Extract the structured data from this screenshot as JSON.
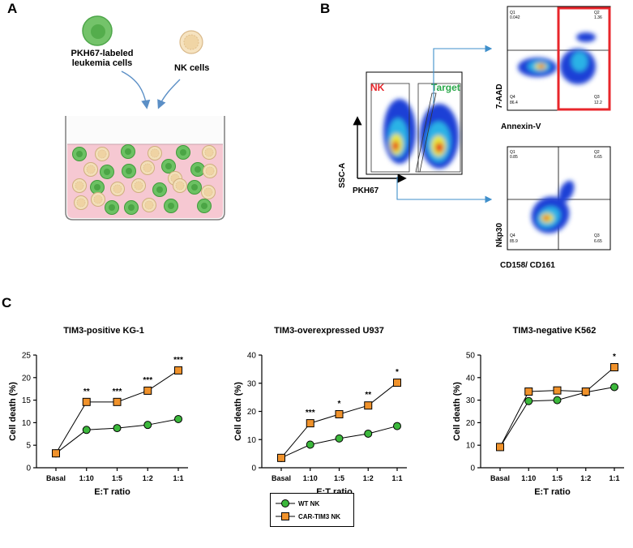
{
  "panels": {
    "a": "A",
    "b": "B",
    "c": "C"
  },
  "schematic": {
    "leukemia_label": "PKH67-labeled\nleukemia cells",
    "nk_label": "NK cells",
    "colors": {
      "green": "#5cb85c",
      "green_dark": "#2f9a3f",
      "beige": "#f3dfb8",
      "pink": "#f6c8d2"
    }
  },
  "flow": {
    "main": {
      "nk_gate": "NK",
      "target_gate": "Target",
      "y_label": "SSC-A",
      "x_label": "PKH67"
    },
    "annexin": {
      "y_label": "7-AAD",
      "x_label": "Annexin-V",
      "q1": {
        "name": "Q1",
        "value": "0.042"
      },
      "q2": {
        "name": "Q2",
        "value": "1.36"
      },
      "q3": {
        "name": "Q3",
        "value": "12.2"
      },
      "q4": {
        "name": "Q4",
        "value": "86.4"
      }
    },
    "nkp30": {
      "y_label": "Nkp30",
      "x_label": "CD158/ CD161",
      "q1": {
        "name": "Q1",
        "value": "0.85"
      },
      "q2": {
        "name": "Q2",
        "value": "6.65"
      },
      "q3": {
        "name": "Q3",
        "value": "6.65"
      },
      "q4": {
        "name": "Q4",
        "value": "85.9"
      }
    },
    "colors": {
      "nk_red": "#e8262b",
      "target_green": "#2aa84a",
      "gate_red": "#e8262b",
      "arrow_blue": "#3f8fcb"
    }
  },
  "legend": {
    "wt": "WT NK",
    "car": "CAR-TIM3 NK"
  },
  "colors": {
    "wt": "#3cb83c",
    "car": "#f0922b"
  },
  "chart_data": [
    {
      "type": "line",
      "title": "TIM3-positive KG-1",
      "xlabel": "E:T ratio",
      "ylabel": "Cell death (%)",
      "categories": [
        "Basal",
        "1:10",
        "1:5",
        "1:2",
        "1:1"
      ],
      "ylim": [
        0,
        25
      ],
      "yticks": [
        "0",
        "5",
        "10",
        "15",
        "20",
        "25"
      ],
      "series": [
        {
          "name": "WT NK",
          "values": [
            3.2,
            8.4,
            8.8,
            9.5,
            10.8
          ]
        },
        {
          "name": "CAR-TIM3 NK",
          "values": [
            3.2,
            14.6,
            14.6,
            17.1,
            21.6
          ]
        }
      ],
      "significance": [
        "",
        "**",
        "***",
        "***",
        "***"
      ]
    },
    {
      "type": "line",
      "title": "TIM3-overexpressed U937",
      "xlabel": "E:T ratio",
      "ylabel": "Cell death (%)",
      "categories": [
        "Basal",
        "1:10",
        "1:5",
        "1:2",
        "1:1"
      ],
      "ylim": [
        0,
        40
      ],
      "yticks": [
        "0",
        "10",
        "20",
        "30",
        "40"
      ],
      "series": [
        {
          "name": "WT NK",
          "values": [
            3.5,
            8.2,
            10.4,
            12.1,
            14.8
          ]
        },
        {
          "name": "CAR-TIM3 NK",
          "values": [
            3.5,
            15.8,
            19.0,
            22.1,
            30.2
          ]
        }
      ],
      "significance": [
        "",
        "***",
        "*",
        "**",
        "*"
      ]
    },
    {
      "type": "line",
      "title": "TIM3-negative K562",
      "xlabel": "E:T ratio",
      "ylabel": "Cell death (%)",
      "categories": [
        "Basal",
        "1:10",
        "1:5",
        "1:2",
        "1:1"
      ],
      "ylim": [
        0,
        50
      ],
      "yticks": [
        "0",
        "10",
        "20",
        "30",
        "40",
        "50"
      ],
      "series": [
        {
          "name": "WT NK",
          "values": [
            9.2,
            29.6,
            30.0,
            33.5,
            35.8
          ]
        },
        {
          "name": "CAR-TIM3 NK",
          "values": [
            9.2,
            33.8,
            34.3,
            33.8,
            44.6
          ]
        }
      ],
      "significance": [
        "",
        "",
        "",
        "",
        "*"
      ]
    }
  ]
}
